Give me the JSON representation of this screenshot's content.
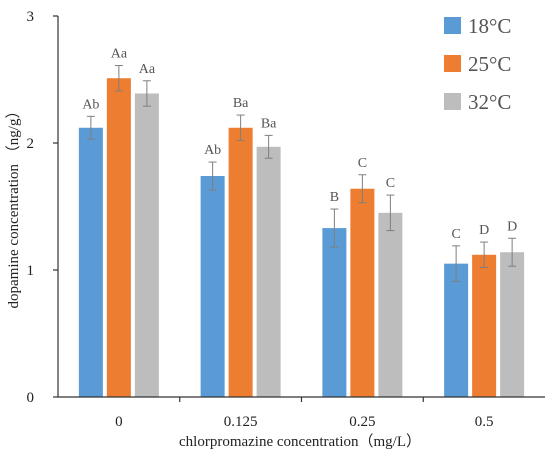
{
  "chart_data": {
    "type": "bar",
    "xlabel": "chlorpromazine concentration（mg/L）",
    "ylabel": "dopamine concentration （ng/g）",
    "ylim": [
      0,
      3
    ],
    "yticks": [
      "0",
      "1",
      "2",
      "3"
    ],
    "categories": [
      "0",
      "0.125",
      "0.25",
      "0.5"
    ],
    "legend_position": "top-right",
    "error_bars": true,
    "series": [
      {
        "name": "18°C",
        "color": "#5B9BD5",
        "values": [
          2.12,
          1.74,
          1.33,
          1.05
        ],
        "errors": [
          0.09,
          0.11,
          0.15,
          0.14
        ],
        "labels": [
          "Ab",
          "Ab",
          "B",
          "C"
        ]
      },
      {
        "name": "25°C",
        "color": "#ED7D31",
        "values": [
          2.51,
          2.12,
          1.64,
          1.12
        ],
        "errors": [
          0.1,
          0.1,
          0.11,
          0.1
        ],
        "labels": [
          "Aa",
          "Ba",
          "C",
          "D"
        ]
      },
      {
        "name": "32°C",
        "color": "#BDBDBD",
        "values": [
          2.39,
          1.97,
          1.45,
          1.14
        ],
        "errors": [
          0.1,
          0.09,
          0.14,
          0.11
        ],
        "labels": [
          "Aa",
          "Ba",
          "C",
          "D"
        ]
      }
    ]
  }
}
